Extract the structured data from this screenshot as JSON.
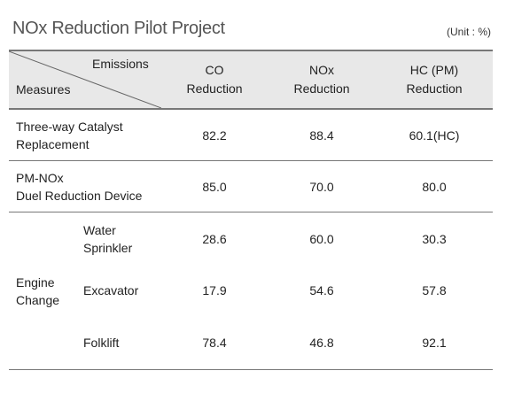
{
  "title": "NOx Reduction Pilot Project",
  "unit": "(Unit : %)",
  "header": {
    "emissions": "Emissions",
    "measures": "Measures",
    "columns": [
      {
        "line1": "CO",
        "line2": "Reduction"
      },
      {
        "line1": "NOx",
        "line2": "Reduction"
      },
      {
        "line1": "HC (PM)",
        "line2": "Reduction"
      }
    ]
  },
  "rows": [
    {
      "line1": "Three-way Catalyst",
      "line2": "Replacement",
      "values": [
        "82.2",
        "88.4",
        "60.1(HC)"
      ]
    },
    {
      "line1": "PM-NOx",
      "line2": "Duel Reduction Device",
      "values": [
        "85.0",
        "70.0",
        "80.0"
      ]
    }
  ],
  "group": {
    "line1": "Engine",
    "line2": "Change",
    "subrows": [
      {
        "line1": "Water",
        "line2": "Sprinkler",
        "values": [
          "28.6",
          "60.0",
          "30.3"
        ]
      },
      {
        "line1": "Excavator",
        "line2": "",
        "values": [
          "17.9",
          "54.6",
          "57.8"
        ]
      },
      {
        "line1": "Folklift",
        "line2": "",
        "values": [
          "78.4",
          "46.8",
          "92.1"
        ]
      }
    ]
  }
}
